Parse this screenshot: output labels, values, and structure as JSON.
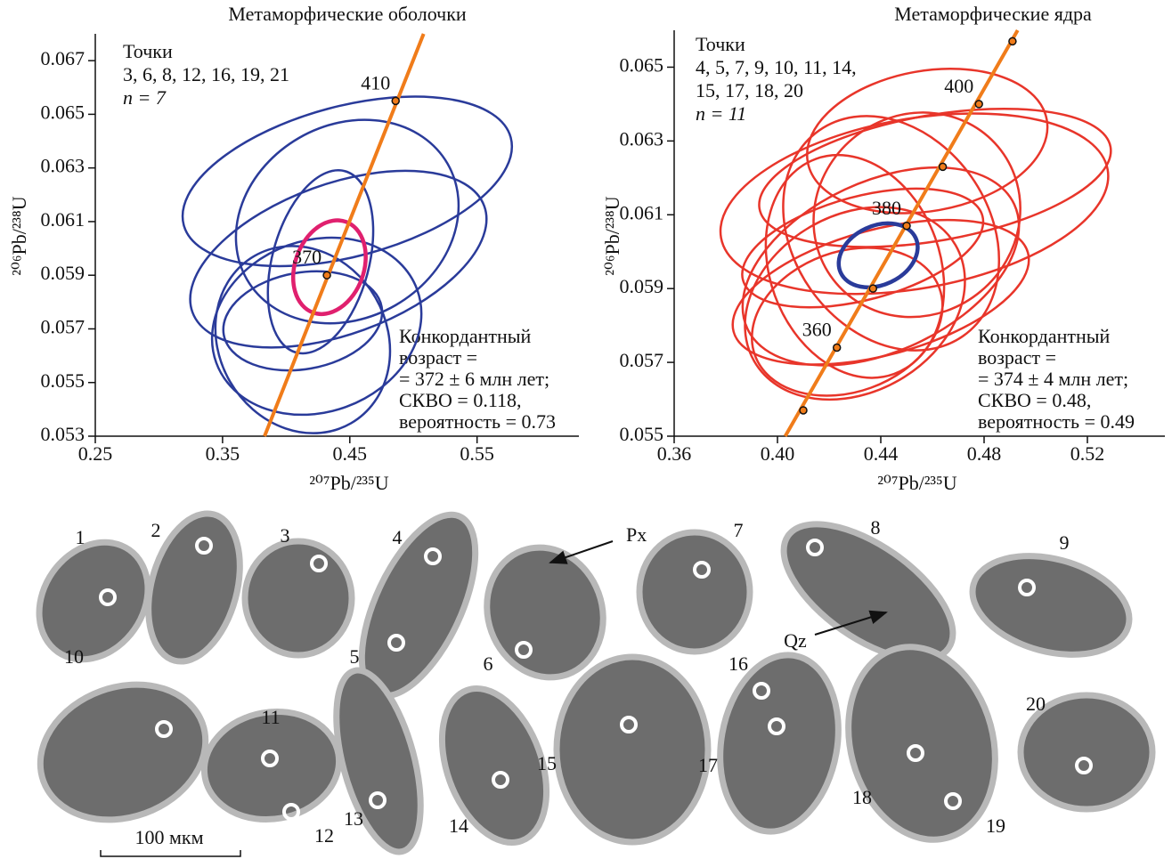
{
  "chart_data": [
    {
      "type": "concordia",
      "title": "Метаморфические оболочки",
      "x_label": "²⁰⁷Pb/²³⁵U",
      "y_label": "²⁰⁶Pb/²³⁸U",
      "xlim": [
        0.25,
        0.63
      ],
      "ylim": [
        0.053,
        0.068
      ],
      "xticks": [
        0.25,
        0.35,
        0.45,
        0.55
      ],
      "yticks": [
        0.053,
        0.055,
        0.057,
        0.059,
        0.061,
        0.063,
        0.065,
        0.067
      ],
      "annotations": [
        "Точки",
        "3, 6, 8, 12, 16, 19, 21",
        "n = 7"
      ],
      "result": [
        "Конкордантный",
        "возраст =",
        "= 372 ± 6 млн лет;",
        "СКВО = 0.118,",
        "вероятность = 0.73"
      ],
      "concordia": {
        "color": "#f07c1a",
        "x": [
          0.383,
          0.508
        ],
        "y": [
          0.053,
          0.068
        ]
      },
      "age_points": {
        "x": [
          0.432,
          0.486
        ],
        "y": [
          0.059,
          0.0655
        ],
        "labels": [
          "370",
          "410"
        ]
      },
      "ellipse_color": "#2a3b9a",
      "ellipses": [
        {
          "x": 0.448,
          "y": 0.0625,
          "rx": 0.133,
          "ry": 0.0028,
          "angle": -15
        },
        {
          "x": 0.448,
          "y": 0.061,
          "rx": 0.091,
          "ry": 0.0036,
          "angle": -30
        },
        {
          "x": 0.441,
          "y": 0.0596,
          "rx": 0.122,
          "ry": 0.0028,
          "angle": -20
        },
        {
          "x": 0.413,
          "y": 0.0566,
          "rx": 0.066,
          "ry": 0.0036,
          "angle": -30
        },
        {
          "x": 0.424,
          "y": 0.0571,
          "rx": 0.084,
          "ry": 0.0032,
          "angle": -20
        },
        {
          "x": 0.427,
          "y": 0.0595,
          "rx": 0.038,
          "ry": 0.0035,
          "angle": 15
        },
        {
          "x": 0.413,
          "y": 0.0573,
          "rx": 0.063,
          "ry": 0.0018,
          "angle": -10
        }
      ],
      "highlight": {
        "color": "#e0206e",
        "x": 0.434,
        "y": 0.0593,
        "rx": 0.027,
        "ry": 0.0018,
        "angle": 20
      }
    },
    {
      "type": "concordia",
      "title": "Метаморфические ядра",
      "x_label": "²⁰⁷Pb/²³⁵U",
      "y_label": "²⁰⁶Pb/²³⁸U",
      "xlim": [
        0.36,
        0.55
      ],
      "ylim": [
        0.055,
        0.066
      ],
      "xticks": [
        0.36,
        {
          "value": 0.4,
          "label": "0.40"
        },
        0.44,
        0.48,
        0.52
      ],
      "yticks": [
        0.055,
        0.057,
        0.059,
        0.061,
        0.063,
        0.065
      ],
      "annotations": [
        "Точки",
        "4, 5, 7, 9, 10, 11, 14,",
        "15, 17, 18, 20",
        "n = 11"
      ],
      "result": [
        "Конкордантный",
        "возраст =",
        "= 374 ± 4 млн лет;",
        "СКВО = 0.48,",
        "вероятность = 0.49"
      ],
      "concordia": {
        "color": "#f07c1a",
        "x": [
          0.403,
          0.493
        ],
        "y": [
          0.055,
          0.066
        ]
      },
      "age_points": {
        "x": [
          0.41,
          0.423,
          0.437,
          0.45,
          0.464,
          0.478,
          0.491
        ],
        "y": [
          0.0557,
          0.0574,
          0.059,
          0.0607,
          0.0623,
          0.064,
          0.0657
        ],
        "labels": [
          null,
          "360",
          null,
          "380",
          null,
          "400",
          null
        ]
      },
      "ellipse_color": "#e8352a",
      "ellipses": [
        {
          "x": 0.453,
          "y": 0.0613,
          "rx": 0.076,
          "ry": 0.0023,
          "angle": -10
        },
        {
          "x": 0.458,
          "y": 0.063,
          "rx": 0.047,
          "ry": 0.0019,
          "angle": -10
        },
        {
          "x": 0.461,
          "y": 0.062,
          "rx": 0.069,
          "ry": 0.0017,
          "angle": -10
        },
        {
          "x": 0.44,
          "y": 0.0596,
          "rx": 0.057,
          "ry": 0.0023,
          "angle": -25
        },
        {
          "x": 0.43,
          "y": 0.0586,
          "rx": 0.045,
          "ry": 0.0024,
          "angle": -30
        },
        {
          "x": 0.444,
          "y": 0.0605,
          "rx": 0.038,
          "ry": 0.0034,
          "angle": -35
        },
        {
          "x": 0.44,
          "y": 0.0589,
          "rx": 0.059,
          "ry": 0.0017,
          "angle": -15
        },
        {
          "x": 0.427,
          "y": 0.0581,
          "rx": 0.038,
          "ry": 0.0019,
          "angle": -20
        },
        {
          "x": 0.43,
          "y": 0.0596,
          "rx": 0.033,
          "ry": 0.0031,
          "angle": -20
        },
        {
          "x": 0.454,
          "y": 0.061,
          "rx": 0.041,
          "ry": 0.0027,
          "angle": -40
        },
        {
          "x": 0.433,
          "y": 0.0601,
          "rx": 0.048,
          "ry": 0.0014,
          "angle": -15
        }
      ],
      "highlight": {
        "color": "#2a3b9a",
        "x": 0.439,
        "y": 0.0599,
        "rx": 0.016,
        "ry": 0.0008,
        "angle": -25
      }
    }
  ],
  "grains": {
    "labels": [
      "1",
      "2",
      "3",
      "4",
      "5",
      "6",
      "7",
      "8",
      "9",
      "10",
      "11",
      "12",
      "13",
      "14",
      "15",
      "16",
      "17",
      "18",
      "19",
      "20"
    ],
    "px": "Px",
    "qz": "Qz",
    "scale": "100 мкм"
  }
}
